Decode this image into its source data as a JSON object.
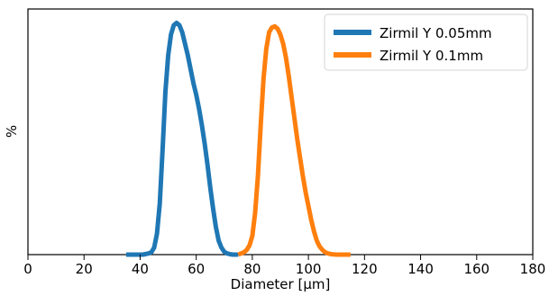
{
  "chart_data": {
    "type": "line",
    "title": "",
    "xlabel": "Diameter [μm]",
    "ylabel": "%",
    "xlim": [
      0,
      180
    ],
    "ylim": [
      0,
      1.06
    ],
    "xticks": [
      0,
      20,
      40,
      60,
      80,
      100,
      120,
      140,
      160,
      180
    ],
    "yticks_visible": false,
    "grid": false,
    "legend_position": "top-right",
    "series": [
      {
        "name": "Zirmil Y 0.05mm",
        "color": "#1f77b4",
        "x": [
          35,
          37,
          39,
          41,
          43,
          44,
          45,
          46,
          47,
          48,
          49,
          50,
          51,
          52,
          53,
          54,
          55,
          56,
          57,
          58,
          59,
          60,
          61,
          62,
          63,
          64,
          65,
          66,
          67,
          68,
          69,
          70,
          71,
          72,
          73,
          74,
          75
        ],
        "y": [
          0.0,
          0.0,
          0.0,
          0.0,
          0.005,
          0.01,
          0.03,
          0.09,
          0.22,
          0.45,
          0.7,
          0.86,
          0.95,
          0.99,
          1.0,
          0.99,
          0.96,
          0.91,
          0.86,
          0.8,
          0.74,
          0.69,
          0.63,
          0.56,
          0.48,
          0.39,
          0.29,
          0.2,
          0.12,
          0.06,
          0.03,
          0.012,
          0.005,
          0.002,
          0.0,
          0.0,
          0.0
        ]
      },
      {
        "name": "Zirmil Y 0.1mm",
        "color": "#ff7f0e",
        "x": [
          75,
          76,
          77,
          78,
          79,
          80,
          81,
          82,
          83,
          84,
          85,
          86,
          87,
          88,
          89,
          90,
          91,
          92,
          93,
          94,
          95,
          96,
          97,
          98,
          99,
          100,
          101,
          102,
          103,
          104,
          105,
          106,
          107,
          108,
          109,
          110,
          112,
          115
        ],
        "y": [
          0.0,
          0.005,
          0.01,
          0.02,
          0.04,
          0.08,
          0.18,
          0.34,
          0.56,
          0.76,
          0.89,
          0.96,
          0.98,
          0.985,
          0.975,
          0.95,
          0.91,
          0.85,
          0.77,
          0.68,
          0.59,
          0.5,
          0.42,
          0.34,
          0.27,
          0.21,
          0.15,
          0.1,
          0.06,
          0.035,
          0.02,
          0.01,
          0.005,
          0.002,
          0.001,
          0.0,
          0.0,
          0.0
        ]
      }
    ]
  }
}
